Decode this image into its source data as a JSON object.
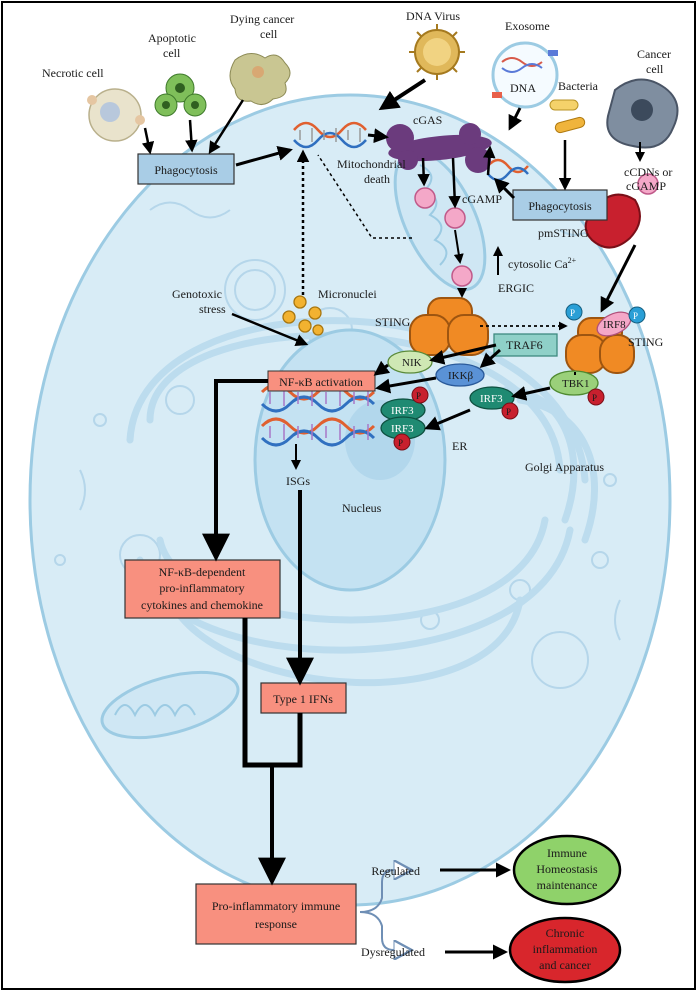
{
  "labels": {
    "dna_virus": "DNA Virus",
    "exosome": "Exosome",
    "exosome_dna": "DNA",
    "bacteria": "Bacteria",
    "cancer_cell_1": "Cancer",
    "cancer_cell_2": "cell",
    "dying_cancer_1": "Dying cancer",
    "dying_cancer_2": "cell",
    "apoptotic_1": "Apoptotic",
    "apoptotic_2": "cell",
    "necrotic": "Necrotic cell",
    "cgas": "cGAS",
    "mito_1": "Mitochondrial",
    "mito_2": "death",
    "cgamp": "cGAMP",
    "cdn_1": "cCDNs or",
    "cdn_2": "cGAMP",
    "pmsting": "pmSTING",
    "calcium": "cytosolic Ca",
    "calcium_sup": "2+",
    "ergic": "ERGIC",
    "genotoxic_1": "Genotoxic",
    "genotoxic_2": "stress",
    "micronuclei": "Micronuclei",
    "sting_left": "STING",
    "sting_right": "STING",
    "traf6": "TRAF6",
    "nik": "NIK",
    "ikk": "IKKβ",
    "irf8": "IRF8",
    "tbk1": "TBK1",
    "irf3": "IRF3",
    "p": "P",
    "er": "ER",
    "golgi": "Golgi Apparatus",
    "isgs": "ISGs",
    "nucleus": "Nucleus",
    "regulated": "Regulated",
    "dysregulated": "Dysregulated"
  },
  "boxes": {
    "phagocytosis_left": "Phagocytosis",
    "phagocytosis_right": "Phagocytosis",
    "nfkb_activation": "NF-κB activation",
    "nfkb_dependent_1": "NF-κB-dependent",
    "nfkb_dependent_2": "pro-inflammatory",
    "nfkb_dependent_3": "cytokines and chemokine",
    "type1_ifns": "Type 1 IFNs",
    "pro_inflam_1": "Pro-inflammatory immune",
    "pro_inflam_2": "response"
  },
  "outcomes": {
    "immune_1": "Immune",
    "immune_2": "Homeostasis",
    "immune_3": "maintenance",
    "chronic_1": "Chronic",
    "chronic_2": "inflammation",
    "chronic_3": "and cancer"
  },
  "colors": {
    "cell_fill": "#d8ecf6",
    "cell_stroke": "#9ccbe3",
    "nucleus_fill": "#c4e2f2",
    "box_blue": "#a9cde6",
    "box_salmon": "#f8907f",
    "cgas_purple": "#6b3b7d",
    "sting_orange": "#f08a24",
    "pmsting_red": "#c8202e",
    "cgamp_pink": "#f4a8c8",
    "irf3_teal": "#1f8a72",
    "traf6_teal": "#8fd0c8",
    "nik_green": "#cfe8b4",
    "tbk1_green": "#9ad07a",
    "ikk_blue": "#5a92d6",
    "p_red": "#c8202e",
    "p_blue": "#2a9fd6",
    "irf8_pink": "#f4a8c8",
    "immune_green": "#8fd26a",
    "chronic_red": "#d8262c"
  }
}
